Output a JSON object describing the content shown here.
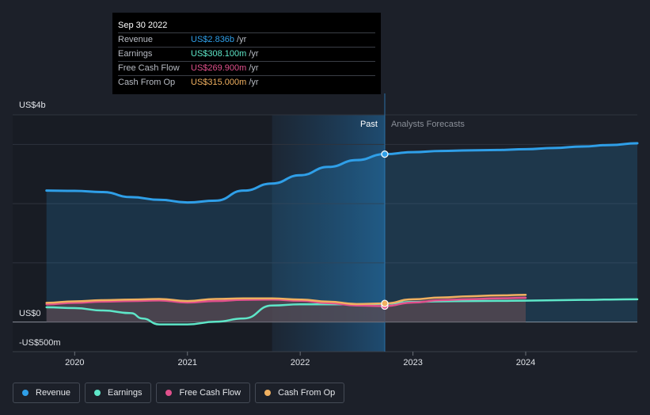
{
  "tooltip": {
    "date": "Sep 30 2022",
    "rows": [
      {
        "label": "Revenue",
        "value": "US$2.836b",
        "unit": "/yr",
        "color": "#2f9fe8"
      },
      {
        "label": "Earnings",
        "value": "US$308.100m",
        "unit": "/yr",
        "color": "#5ee6c8"
      },
      {
        "label": "Free Cash Flow",
        "value": "US$269.900m",
        "unit": "/yr",
        "color": "#e0508c"
      },
      {
        "label": "Cash From Op",
        "value": "US$315.000m",
        "unit": "/yr",
        "color": "#f0b060"
      }
    ]
  },
  "legend": [
    {
      "label": "Revenue",
      "color": "#2f9fe8"
    },
    {
      "label": "Earnings",
      "color": "#5ee6c8"
    },
    {
      "label": "Free Cash Flow",
      "color": "#e0508c"
    },
    {
      "label": "Cash From Op",
      "color": "#f0b060"
    }
  ],
  "chart_data": {
    "type": "line",
    "y_labels": {
      "top": "US$4b",
      "zero": "US$0",
      "bottom": "-US$500m"
    },
    "ylim": [
      -500,
      3500
    ],
    "x_ticks": [
      2020,
      2021,
      2022,
      2023,
      2024
    ],
    "xlim": [
      2019.45,
      2024.99
    ],
    "divider_x": 2022.75,
    "past_label": "Past",
    "forecast_label": "Analysts Forecasts",
    "shaded_start_x": 2021.75,
    "series": [
      {
        "name": "Revenue",
        "color": "#2f9fe8",
        "marker_x": 2022.75,
        "points": [
          [
            2019.75,
            2220
          ],
          [
            2020,
            2215
          ],
          [
            2020.25,
            2195
          ],
          [
            2020.5,
            2110
          ],
          [
            2020.75,
            2065
          ],
          [
            2021,
            2020
          ],
          [
            2021.25,
            2050
          ],
          [
            2021.5,
            2220
          ],
          [
            2021.75,
            2340
          ],
          [
            2022,
            2480
          ],
          [
            2022.25,
            2620
          ],
          [
            2022.5,
            2735
          ],
          [
            2022.75,
            2836
          ],
          [
            2023,
            2870
          ],
          [
            2023.25,
            2890
          ],
          [
            2023.5,
            2900
          ],
          [
            2023.75,
            2906
          ],
          [
            2024,
            2920
          ],
          [
            2024.25,
            2940
          ],
          [
            2024.5,
            2965
          ],
          [
            2024.75,
            2990
          ],
          [
            2024.99,
            3020
          ]
        ]
      },
      {
        "name": "Earnings",
        "color": "#5ee6c8",
        "marker_x": 2022.75,
        "points": [
          [
            2019.75,
            250
          ],
          [
            2020,
            235
          ],
          [
            2020.25,
            195
          ],
          [
            2020.5,
            150
          ],
          [
            2020.6,
            60
          ],
          [
            2020.75,
            -40
          ],
          [
            2021,
            -40
          ],
          [
            2021.25,
            5
          ],
          [
            2021.5,
            60
          ],
          [
            2021.75,
            280
          ],
          [
            2022,
            300
          ],
          [
            2022.25,
            300
          ],
          [
            2022.5,
            300
          ],
          [
            2022.75,
            308
          ],
          [
            2023,
            340
          ],
          [
            2023.25,
            350
          ],
          [
            2023.5,
            355
          ],
          [
            2023.75,
            358
          ],
          [
            2024,
            362
          ],
          [
            2024.25,
            368
          ],
          [
            2024.5,
            374
          ],
          [
            2024.75,
            380
          ],
          [
            2024.99,
            385
          ]
        ]
      },
      {
        "name": "Free Cash Flow",
        "color": "#e0508c",
        "marker_x": 2022.75,
        "points": [
          [
            2019.75,
            300
          ],
          [
            2020,
            325
          ],
          [
            2020.25,
            345
          ],
          [
            2020.5,
            355
          ],
          [
            2020.75,
            365
          ],
          [
            2021,
            330
          ],
          [
            2021.25,
            355
          ],
          [
            2021.5,
            375
          ],
          [
            2021.75,
            380
          ],
          [
            2022,
            360
          ],
          [
            2022.25,
            320
          ],
          [
            2022.5,
            280
          ],
          [
            2022.75,
            270
          ],
          [
            2023,
            330
          ],
          [
            2023.25,
            370
          ],
          [
            2023.5,
            385
          ],
          [
            2023.75,
            400
          ],
          [
            2024,
            410
          ]
        ]
      },
      {
        "name": "Cash From Op",
        "color": "#f0b060",
        "marker_x": 2022.75,
        "points": [
          [
            2019.75,
            325
          ],
          [
            2020,
            350
          ],
          [
            2020.25,
            370
          ],
          [
            2020.5,
            380
          ],
          [
            2020.75,
            390
          ],
          [
            2021,
            355
          ],
          [
            2021.25,
            390
          ],
          [
            2021.5,
            400
          ],
          [
            2021.75,
            400
          ],
          [
            2022,
            380
          ],
          [
            2022.25,
            345
          ],
          [
            2022.5,
            305
          ],
          [
            2022.75,
            315
          ],
          [
            2023,
            385
          ],
          [
            2023.25,
            415
          ],
          [
            2023.5,
            435
          ],
          [
            2023.75,
            450
          ],
          [
            2024,
            460
          ]
        ]
      }
    ]
  }
}
